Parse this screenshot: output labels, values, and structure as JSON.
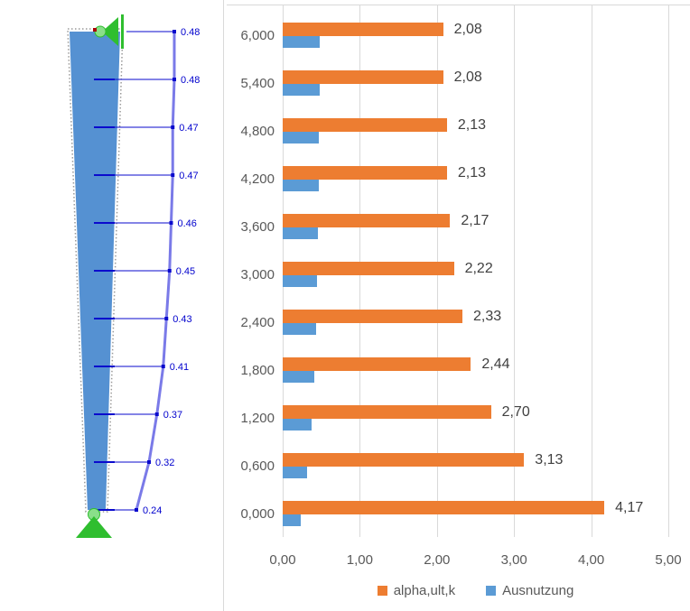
{
  "chart_data": {
    "type": "bar",
    "orientation": "horizontal",
    "categories": [
      "6,000",
      "5,400",
      "4,800",
      "4,200",
      "3,600",
      "3,000",
      "2,400",
      "1,800",
      "1,200",
      "0,600",
      "0,000"
    ],
    "series": [
      {
        "name": "alpha,ult,k",
        "color": "#ed7d31",
        "values": [
          2.08,
          2.08,
          2.13,
          2.13,
          2.17,
          2.22,
          2.33,
          2.44,
          2.7,
          3.13,
          4.17
        ],
        "data_labels": [
          "2,08",
          "2,08",
          "2,13",
          "2,13",
          "2,17",
          "2,22",
          "2,33",
          "2,44",
          "2,70",
          "3,13",
          "4,17"
        ]
      },
      {
        "name": "Ausnutzung",
        "color": "#5b9bd5",
        "values": [
          0.48,
          0.48,
          0.47,
          0.47,
          0.46,
          0.45,
          0.43,
          0.41,
          0.37,
          0.32,
          0.24
        ]
      }
    ],
    "xlim": [
      0,
      5
    ],
    "x_ticks": [
      "0,00",
      "1,00",
      "2,00",
      "3,00",
      "4,00",
      "5,00"
    ],
    "grid": true,
    "legend_position": "bottom",
    "gridline_color": "#d9d9d9",
    "tick_label_color": "#595959",
    "data_label_color": "#404040"
  },
  "structure_diagram": {
    "utilization_labels": [
      "0.48",
      "0.48",
      "0.47",
      "0.47",
      "0.46",
      "0.45",
      "0.43",
      "0.41",
      "0.37",
      "0.32",
      "0.24"
    ],
    "utilization_values": [
      0.48,
      0.48,
      0.47,
      0.47,
      0.46,
      0.45,
      0.43,
      0.41,
      0.37,
      0.32,
      0.24
    ],
    "colors": {
      "member_fill": "#5591d2",
      "outline": "#9a9a9a",
      "support": "#2fbe2f",
      "support_node": "#8adf8a",
      "result_line": "#0a0acd",
      "result_curve": "#7a7ae8",
      "label": "#0000cd",
      "node_marker": "#aa0000"
    }
  }
}
